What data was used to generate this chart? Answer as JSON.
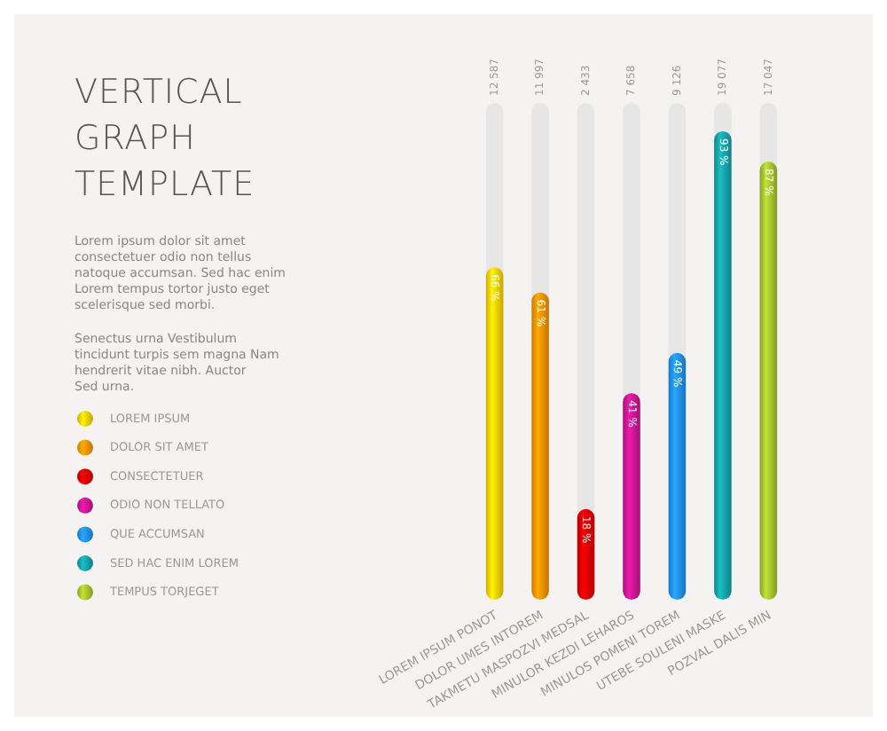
{
  "chart_data": {
    "type": "bar",
    "title": "VERTICAL GRAPH TEMPLATE",
    "annotations": [
      "Lorem ipsum dolor sit amet consectetuer odio non tellus natoque accumsan. Sed hac enim Lorem tempus tortor justo eget scelerisque sed morbi.",
      "Senectus urna Vestibulum tincidunt turpis sem magna Nam hendrerit vitae nibh. Auctor Sed urna.",
      "12 587",
      "11 997",
      "2 433",
      "7 658",
      "9 126",
      "19 077",
      "17 047"
    ],
    "categories": [
      "LOREM IPSUM PONOT",
      "DOLOR UMES INTOREM",
      "TAKMETU MASPOZVI MEDSAL",
      "MINULOR KEZDI LEHAROS",
      "MINULOS POMENI TOREM",
      "UTEBE SOULENI MASKE",
      "POZVAL DALIS MIN"
    ],
    "tick_labels": "x",
    "legend": "left",
    "series": [
      {
        "name": "LOREM IPSUM",
        "color": "#f2c500",
        "values": [
          66,
          null,
          null,
          null,
          null,
          null,
          null
        ],
        "value_labels": [
          "66 %",
          null,
          null,
          null,
          null,
          null,
          null
        ]
      },
      {
        "name": "DOLOR SIT AMET",
        "color": "#f08a00",
        "values": [
          null,
          61,
          null,
          null,
          null,
          null,
          null
        ],
        "value_labels": [
          null,
          "61 %",
          null,
          null,
          null,
          null,
          null
        ]
      },
      {
        "name": "CONSECTETUER",
        "color": "#d40000",
        "values": [
          null,
          null,
          18,
          null,
          null,
          null,
          null
        ],
        "value_labels": [
          null,
          null,
          "18 %",
          null,
          null,
          null,
          null
        ]
      },
      {
        "name": "ODIO NON TELLATO",
        "color": "#c0148c",
        "values": [
          null,
          null,
          null,
          41,
          null,
          null,
          null
        ],
        "value_labels": [
          null,
          null,
          null,
          "41 %",
          null,
          null,
          null
        ]
      },
      {
        "name": "QUE ACCUMSAN",
        "color": "#1e88e5",
        "values": [
          null,
          null,
          null,
          null,
          49,
          null,
          null
        ],
        "value_labels": [
          null,
          null,
          null,
          null,
          "49 %",
          null,
          null
        ]
      },
      {
        "name": "SED HAC ENIM LOREM",
        "color": "#139aa0",
        "values": [
          null,
          null,
          null,
          null,
          null,
          93,
          null
        ],
        "value_labels": [
          null,
          null,
          null,
          null,
          null,
          "93 %",
          null
        ]
      },
      {
        "name": "TEMPUS TORJEGET",
        "color": "#9cb82a",
        "values": [
          null,
          null,
          null,
          null,
          null,
          null,
          87
        ],
        "value_labels": [
          null,
          null,
          null,
          null,
          null,
          null,
          "87 %"
        ]
      }
    ]
  }
}
